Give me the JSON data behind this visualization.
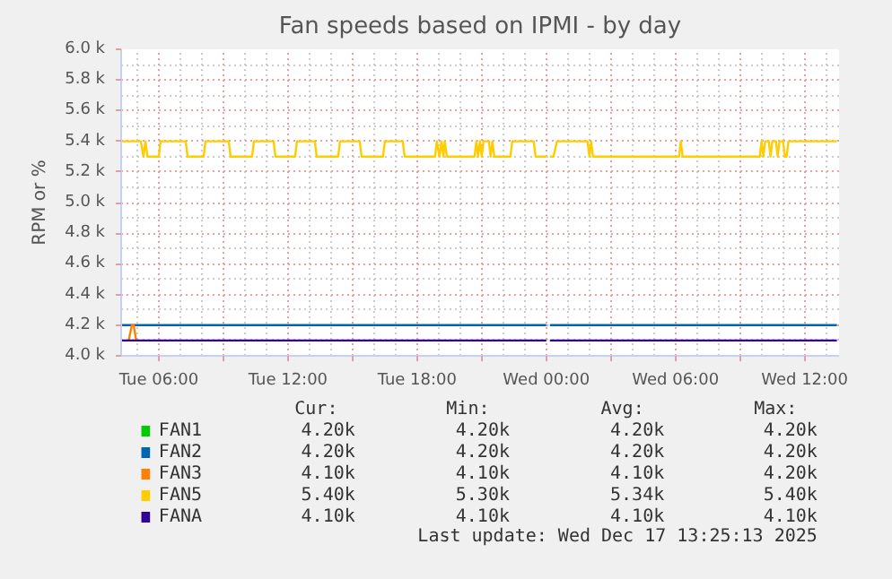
{
  "chart_data": {
    "type": "line",
    "title": "Fan speeds based on IPMI - by day",
    "ylabel": "RPM or %",
    "xlim": [
      "2025-12-16T04:15",
      "2025-12-17T13:36"
    ],
    "ylim": [
      4000,
      6000
    ],
    "xticks": [
      {
        "value": "2025-12-16T06:00",
        "label": "Tue 06:00"
      },
      {
        "value": "2025-12-16T09:00",
        "label": null
      },
      {
        "value": "2025-12-16T12:00",
        "label": "Tue 12:00"
      },
      {
        "value": "2025-12-16T15:00",
        "label": null
      },
      {
        "value": "2025-12-16T18:00",
        "label": "Tue 18:00"
      },
      {
        "value": "2025-12-16T21:00",
        "label": null
      },
      {
        "value": "2025-12-17T00:00",
        "label": "Wed 00:00"
      },
      {
        "value": "2025-12-17T03:00",
        "label": null
      },
      {
        "value": "2025-12-17T06:00",
        "label": "Wed 06:00"
      },
      {
        "value": "2025-12-17T09:00",
        "label": null
      },
      {
        "value": "2025-12-17T12:00",
        "label": "Wed 12:00"
      }
    ],
    "yticks": [
      {
        "value": 4000,
        "label": "4.0 k"
      },
      {
        "value": 4200,
        "label": "4.2 k"
      },
      {
        "value": 4400,
        "label": "4.4 k"
      },
      {
        "value": 4600,
        "label": "4.6 k"
      },
      {
        "value": 4800,
        "label": "4.8 k"
      },
      {
        "value": 5000,
        "label": "5.0 k"
      },
      {
        "value": 5200,
        "label": "5.2 k"
      },
      {
        "value": 5400,
        "label": "5.4 k"
      },
      {
        "value": 5600,
        "label": "5.6 k"
      },
      {
        "value": 5800,
        "label": "5.8 k"
      },
      {
        "value": 6000,
        "label": "6.0 k"
      }
    ],
    "grid": true,
    "legend": "bottom",
    "series": [
      {
        "name": "FAN1",
        "color": "#00cc00"
      },
      {
        "name": "FAN2",
        "color": "#0066b3",
        "x": [
          "2025-12-16T04:15",
          "2025-12-17T00:00",
          "2025-12-17T00:02",
          "2025-12-17T00:10",
          "2025-12-17T13:30"
        ],
        "values": [
          4200,
          4200,
          null,
          4200,
          4200
        ]
      },
      {
        "name": "FAN3",
        "color": "#ff8000",
        "x": [
          "2025-12-16T04:36",
          "2025-12-16T04:45",
          "2025-12-16T04:50",
          "2025-12-16T04:57"
        ],
        "values": [
          4100,
          4200,
          4200,
          4100
        ]
      },
      {
        "name": "FAN5",
        "color": "#ffcc00",
        "x": [
          "2025-12-16T04:15",
          "2025-12-16T05:10",
          "2025-12-16T05:17",
          "2025-12-16T05:23",
          "2025-12-16T05:28",
          "2025-12-16T06:00",
          "2025-12-16T06:05",
          "2025-12-16T07:15",
          "2025-12-16T07:20",
          "2025-12-16T08:05",
          "2025-12-16T08:10",
          "2025-12-16T09:15",
          "2025-12-16T09:20",
          "2025-12-16T10:20",
          "2025-12-16T10:25",
          "2025-12-16T11:20",
          "2025-12-16T11:25",
          "2025-12-16T12:20",
          "2025-12-16T12:25",
          "2025-12-16T13:15",
          "2025-12-16T13:20",
          "2025-12-16T14:20",
          "2025-12-16T14:25",
          "2025-12-16T15:20",
          "2025-12-16T15:25",
          "2025-12-16T16:25",
          "2025-12-16T16:30",
          "2025-12-16T17:20",
          "2025-12-16T17:25",
          "2025-12-16T18:50",
          "2025-12-16T18:55",
          "2025-12-16T19:02",
          "2025-12-16T19:08",
          "2025-12-16T19:13",
          "2025-12-16T19:17",
          "2025-12-16T19:23",
          "2025-12-16T20:40",
          "2025-12-16T20:45",
          "2025-12-16T20:50",
          "2025-12-16T20:55",
          "2025-12-16T21:00",
          "2025-12-16T21:05",
          "2025-12-16T21:20",
          "2025-12-16T21:25",
          "2025-12-16T21:30",
          "2025-12-16T21:35",
          "2025-12-16T22:20",
          "2025-12-16T22:25",
          "2025-12-16T23:25",
          "2025-12-16T23:30",
          "2025-12-17T00:00",
          "2025-12-17T00:02",
          "2025-12-17T00:10",
          "2025-12-17T00:20",
          "2025-12-17T00:30",
          "2025-12-17T01:55",
          "2025-12-17T02:00",
          "2025-12-17T02:05",
          "2025-12-17T02:10",
          "2025-12-17T06:10",
          "2025-12-17T06:15",
          "2025-12-17T06:20",
          "2025-12-17T09:55",
          "2025-12-17T10:00",
          "2025-12-17T10:05",
          "2025-12-17T10:10",
          "2025-12-17T10:20",
          "2025-12-17T10:25",
          "2025-12-17T10:30",
          "2025-12-17T10:40",
          "2025-12-17T10:45",
          "2025-12-17T10:50",
          "2025-12-17T11:00",
          "2025-12-17T11:05",
          "2025-12-17T11:10",
          "2025-12-17T11:15",
          "2025-12-17T13:30"
        ],
        "values": [
          5400,
          5400,
          5300,
          5400,
          5300,
          5300,
          5400,
          5400,
          5300,
          5300,
          5400,
          5400,
          5300,
          5300,
          5400,
          5400,
          5300,
          5300,
          5400,
          5400,
          5300,
          5300,
          5400,
          5400,
          5300,
          5300,
          5400,
          5400,
          5300,
          5300,
          5400,
          5300,
          5400,
          5300,
          5400,
          5300,
          5300,
          5400,
          5300,
          5400,
          5300,
          5400,
          5400,
          5300,
          5400,
          5300,
          5300,
          5400,
          5400,
          5300,
          5300,
          null,
          5300,
          5300,
          5400,
          5400,
          5300,
          5400,
          5300,
          5300,
          5400,
          5300,
          5300,
          5400,
          5300,
          5400,
          5400,
          5300,
          5400,
          5400,
          5300,
          5400,
          5400,
          5300,
          5300,
          5400,
          5400
        ]
      },
      {
        "name": "FANA",
        "color": "#330099",
        "x": [
          "2025-12-16T04:15",
          "2025-12-17T00:00",
          "2025-12-17T00:02",
          "2025-12-17T00:10",
          "2025-12-17T13:30"
        ],
        "values": [
          4100,
          4100,
          null,
          4100,
          4100
        ]
      }
    ],
    "annotations": [
      "Cur:",
      "Min:",
      "Avg:",
      "Max:",
      "4.20k",
      "4.20k",
      "4.20k",
      "4.20k",
      "4.20k",
      "4.20k",
      "4.20k",
      "4.20k",
      "4.10k",
      "4.10k",
      "4.10k",
      "4.20k",
      "5.40k",
      "5.30k",
      "5.34k",
      "5.40k",
      "4.10k",
      "4.10k",
      "4.10k",
      "4.10k",
      "Last update: Wed Dec 17 13:25:13 2025"
    ]
  }
}
